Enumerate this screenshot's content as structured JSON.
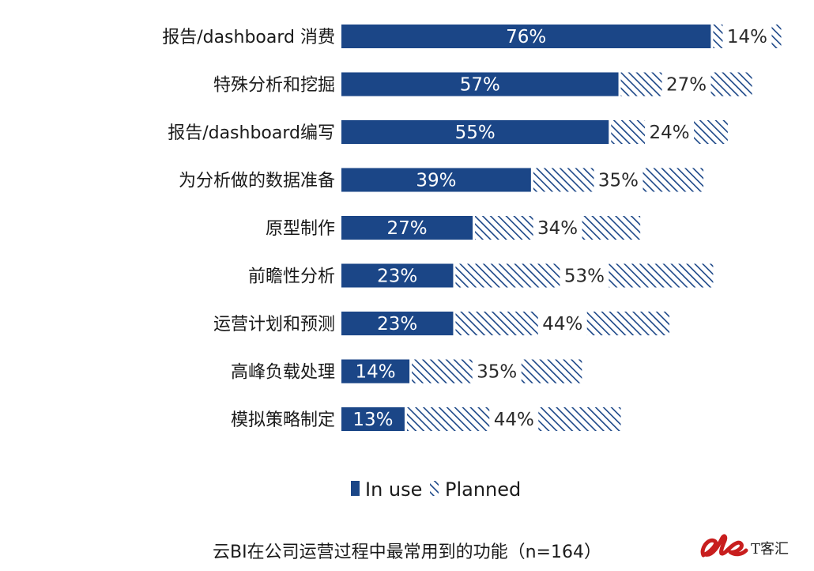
{
  "chart_data": {
    "type": "bar",
    "orientation": "horizontal",
    "stacked": true,
    "categories": [
      "报告/dashboard 消费",
      "特殊分析和挖掘",
      "报告/dashboard编写",
      "为分析做的数据准备",
      "原型制作",
      "前瞻性分析",
      "运营计划和预测",
      "高峰负载处理",
      "模拟策略制定"
    ],
    "series": [
      {
        "name": "In use",
        "values": [
          76,
          57,
          55,
          39,
          27,
          23,
          23,
          14,
          13
        ]
      },
      {
        "name": "Planned",
        "values": [
          14,
          27,
          24,
          35,
          34,
          53,
          44,
          35,
          44
        ]
      }
    ],
    "value_suffix": "%",
    "xlim": [
      0,
      100
    ],
    "legend_placement": "bottom",
    "colors": {
      "in_use": "#1b4687",
      "planned_stripe": "#1b4687",
      "planned_bg": "#ffffff"
    }
  },
  "caption": "云BI在公司运营过程中最常用到的功能（n=164）",
  "brand": {
    "mark": "ele",
    "text": "T客汇"
  }
}
